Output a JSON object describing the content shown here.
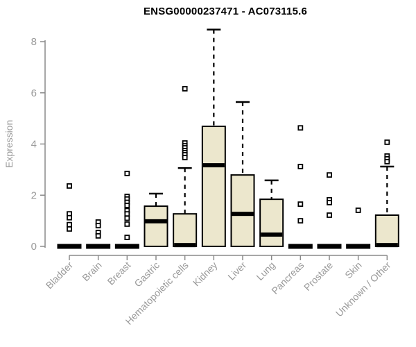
{
  "chart_data": {
    "type": "box",
    "title": "ENSG00000237471 - AC073115.6",
    "ylabel": "Expression",
    "xlabel": "",
    "ylim": [
      0,
      8.6
    ],
    "yticks": [
      0,
      2,
      4,
      6,
      8
    ],
    "grid": false,
    "legend": "none",
    "categories": [
      "Bladder",
      "Brain",
      "Breast",
      "Gastric",
      "Hematopoietic cells",
      "Kidney",
      "Liver",
      "Lung",
      "Pancreas",
      "Prostate",
      "Skin",
      "Unknown / Other"
    ],
    "boxes": [
      {
        "category": "Bladder",
        "q1": 0,
        "median": 0,
        "q3": 0,
        "whisker_low": 0,
        "whisker_high": 0,
        "outliers": [
          2.36,
          1.27,
          1.12,
          0.85,
          0.68
        ]
      },
      {
        "category": "Brain",
        "q1": 0,
        "median": 0,
        "q3": 0,
        "whisker_low": 0,
        "whisker_high": 0,
        "outliers": [
          0.95,
          0.81,
          0.54,
          0.41
        ]
      },
      {
        "category": "Breast",
        "q1": 0,
        "median": 0,
        "q3": 0,
        "whisker_low": 0,
        "whisker_high": 0,
        "outliers": [
          2.85,
          1.95,
          1.85,
          1.72,
          1.6,
          1.4,
          1.27,
          1.1,
          0.87,
          0.35
        ]
      },
      {
        "category": "Gastric",
        "q1": 0,
        "median": 0.98,
        "q3": 1.57,
        "whisker_low": 0,
        "whisker_high": 2.06,
        "outliers": []
      },
      {
        "category": "Hematopoietic cells",
        "q1": 0,
        "median": 0.05,
        "q3": 1.27,
        "whisker_low": 0,
        "whisker_high": 3.06,
        "outliers": [
          6.16,
          4.04,
          3.93,
          3.85,
          3.74,
          3.66,
          3.58,
          3.47
        ]
      },
      {
        "category": "Kidney",
        "q1": 0,
        "median": 3.17,
        "q3": 4.69,
        "whisker_low": 0,
        "whisker_high": 8.47,
        "outliers": []
      },
      {
        "category": "Liver",
        "q1": 0,
        "median": 1.27,
        "q3": 2.79,
        "whisker_low": 0,
        "whisker_high": 5.64,
        "outliers": []
      },
      {
        "category": "Lung",
        "q1": 0,
        "median": 0.46,
        "q3": 1.84,
        "whisker_low": 0,
        "whisker_high": 2.58,
        "outliers": []
      },
      {
        "category": "Pancreas",
        "q1": 0,
        "median": 0,
        "q3": 0,
        "whisker_low": 0,
        "whisker_high": 0,
        "outliers": [
          4.63,
          3.12,
          1.65,
          1.0
        ]
      },
      {
        "category": "Prostate",
        "q1": 0,
        "median": 0,
        "q3": 0,
        "whisker_low": 0,
        "whisker_high": 0,
        "outliers": [
          2.79,
          1.82,
          1.71,
          1.22
        ]
      },
      {
        "category": "Skin",
        "q1": 0,
        "median": 0,
        "q3": 0,
        "whisker_low": 0,
        "whisker_high": 0,
        "outliers": [
          1.41
        ]
      },
      {
        "category": "Unknown / Other",
        "q1": 0,
        "median": 0.05,
        "q3": 1.22,
        "whisker_low": 0,
        "whisker_high": 3.12,
        "outliers": [
          4.07,
          3.53,
          3.42,
          3.31
        ]
      }
    ],
    "colors": {
      "box_fill": "#ece7cd",
      "box_border": "#000000",
      "median": "#000000",
      "whisker": "#000000",
      "outlier_border": "#000000",
      "outlier_fill": "#ffffff",
      "axis_line": "#8a8a8a",
      "tick_label": "#999999",
      "title": "#000000"
    }
  }
}
